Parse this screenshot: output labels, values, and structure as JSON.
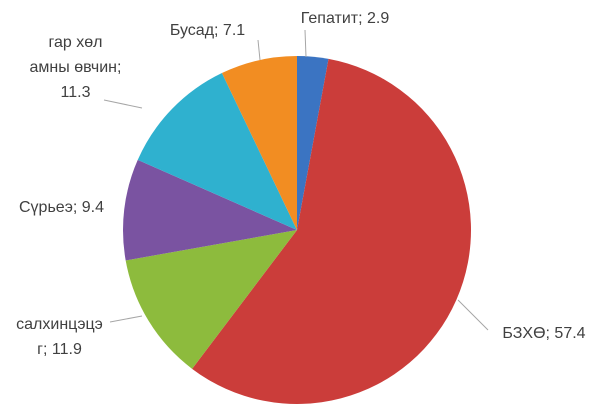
{
  "chart_data": {
    "type": "pie",
    "values": [
      2.9,
      57.4,
      11.9,
      9.4,
      11.3,
      7.1
    ],
    "value_labels": [
      "Гепатит; 2.9",
      "БЗХӨ; 57.4",
      "салхинцэцэг; 11.9",
      "Сүрьеэ; 9.4",
      "гар хөл амны өвчин; 11.3",
      "Бусад; 7.1"
    ],
    "colors": [
      "#3b74c2",
      "#cb3d3a",
      "#8dbb3d",
      "#7a53a1",
      "#2fb1cf",
      "#f28d22"
    ]
  }
}
